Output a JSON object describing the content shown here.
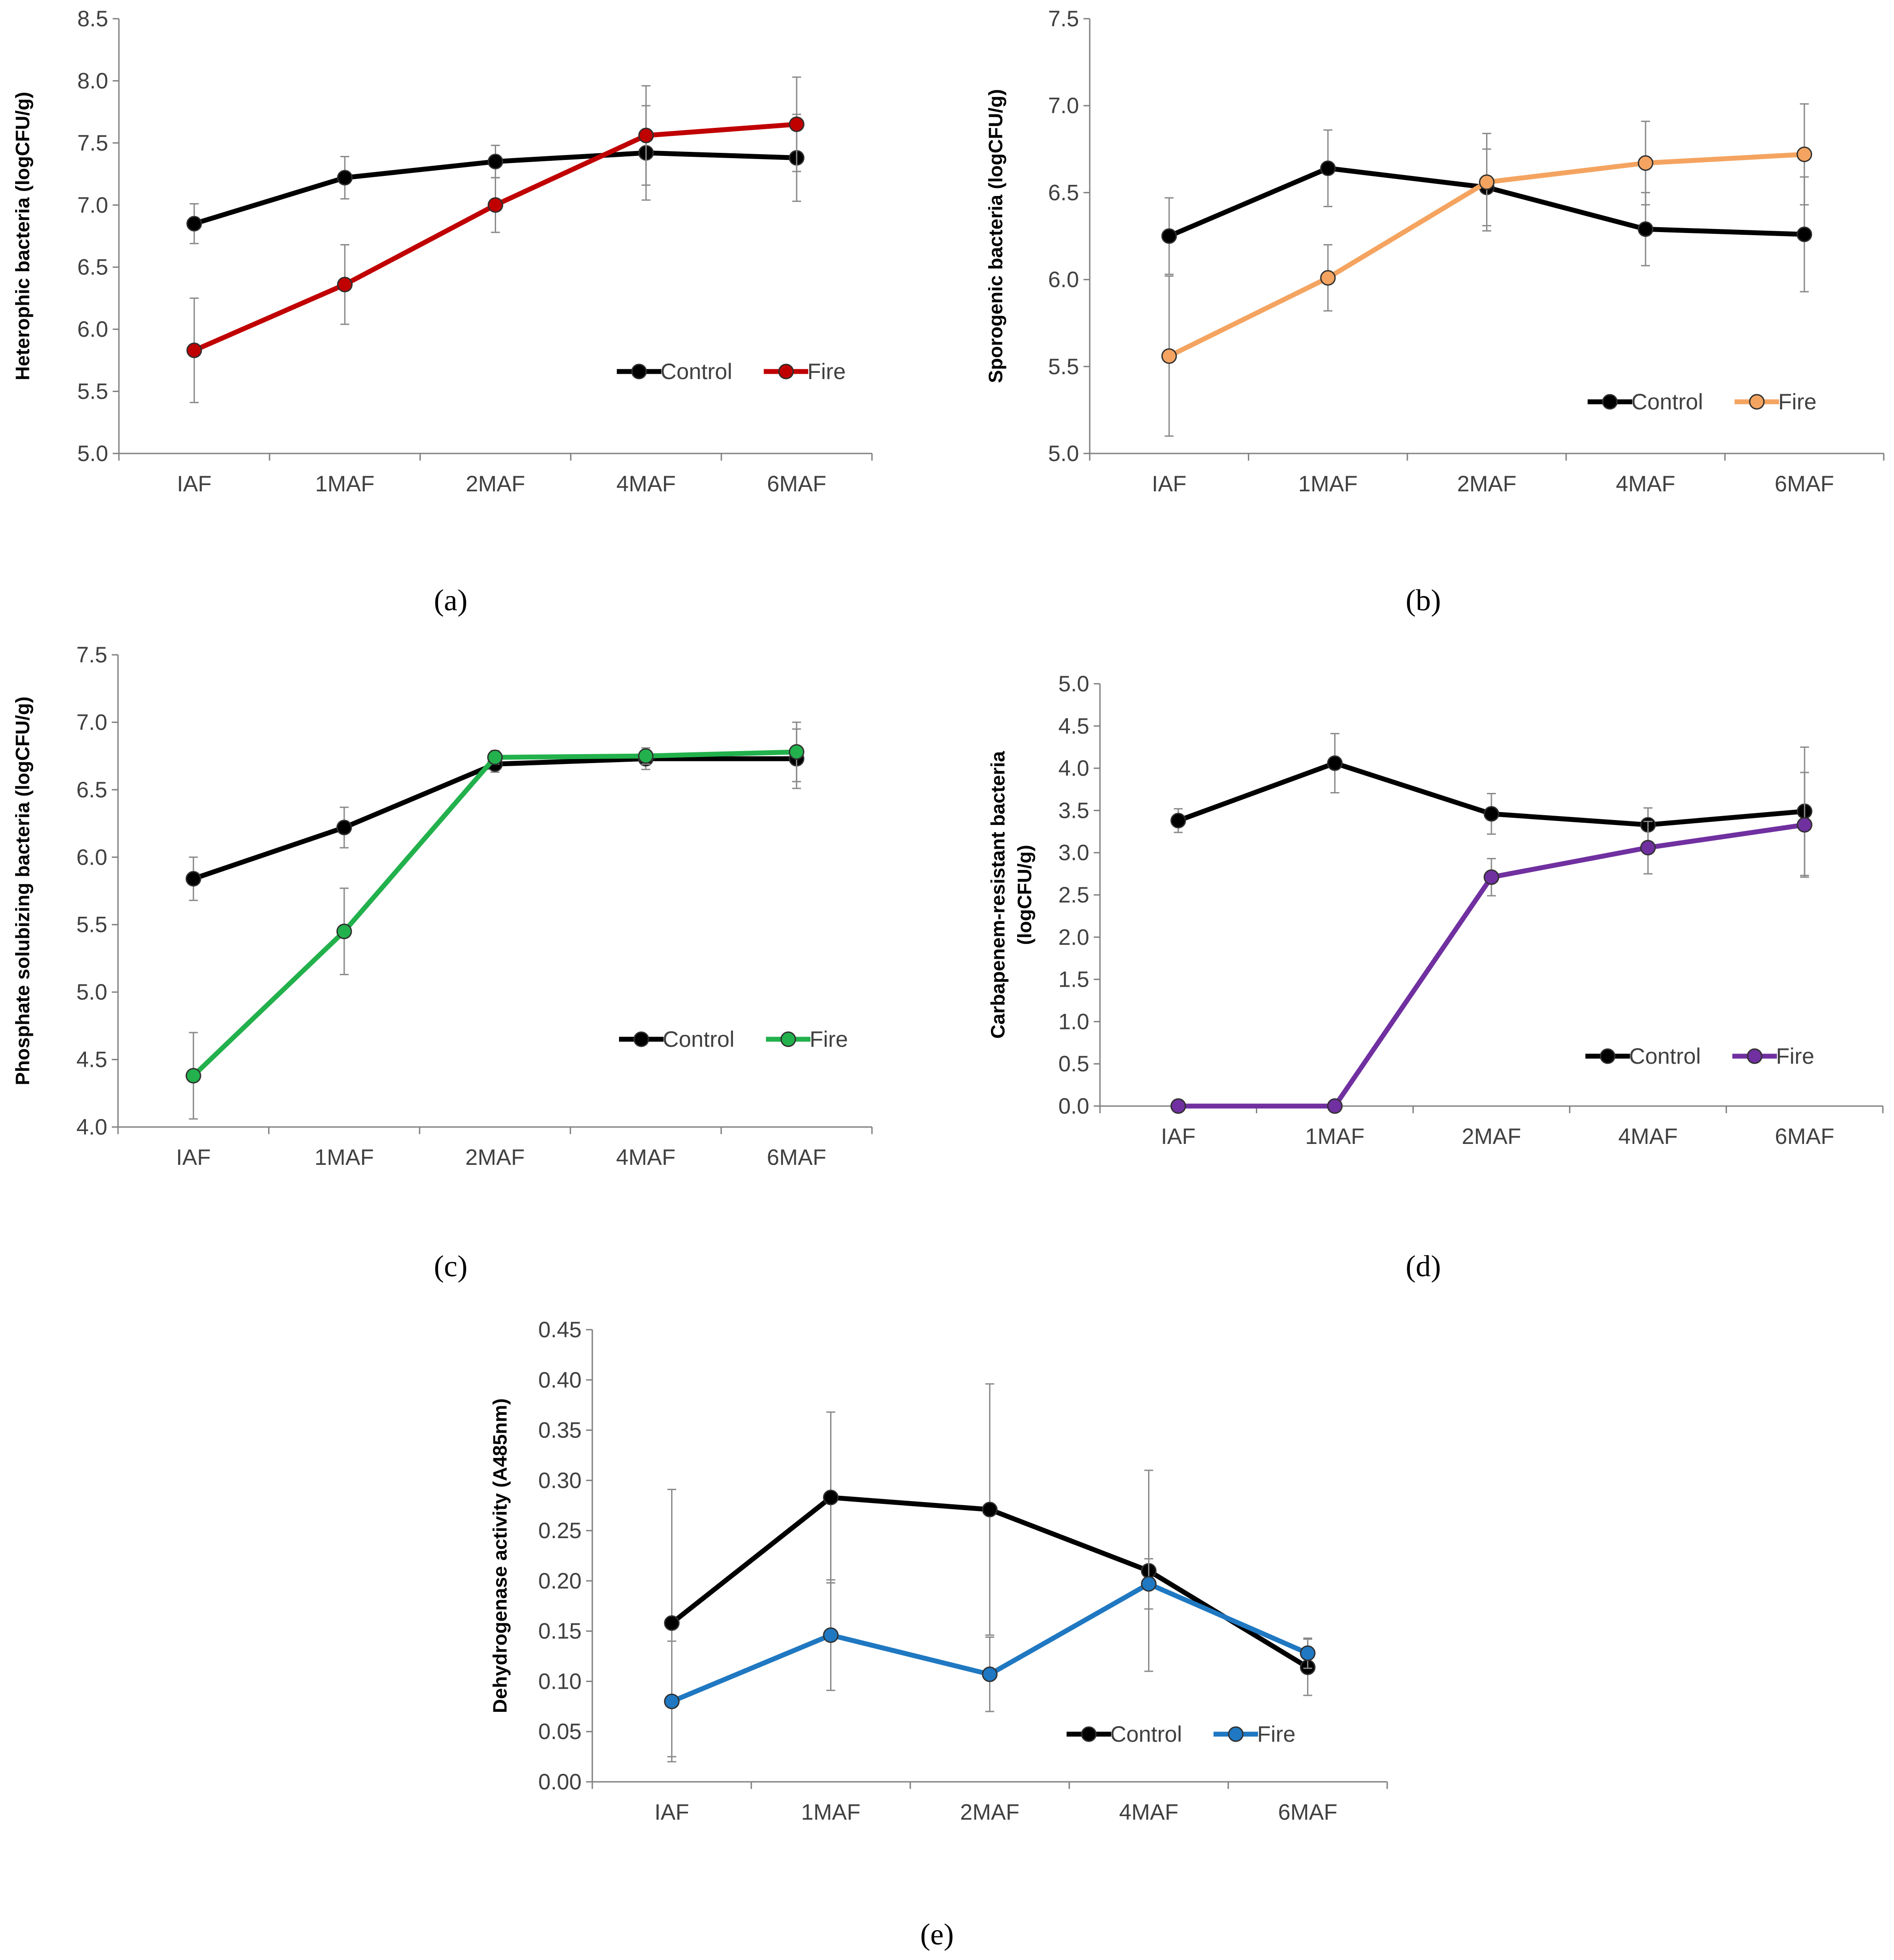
{
  "chart_data": [
    {
      "panel": "a",
      "type": "line",
      "ylabel": "Heterophic bacteria (logCFU/g)",
      "categories": [
        "IAF",
        "1MAF",
        "2MAF",
        "4MAF",
        "6MAF"
      ],
      "ylim": [
        5.0,
        8.5
      ],
      "yticks": [
        "5.0",
        "5.5",
        "6.0",
        "6.5",
        "7.0",
        "7.5",
        "8.0",
        "8.5"
      ],
      "series": [
        {
          "name": "Control",
          "color": "#000000",
          "values": [
            6.85,
            7.22,
            7.35,
            7.42,
            7.38
          ],
          "err": [
            0.16,
            0.17,
            0.13,
            0.38,
            0.35
          ]
        },
        {
          "name": "Fire",
          "color": "#c00000",
          "values": [
            5.83,
            6.36,
            7.0,
            7.56,
            7.65
          ],
          "err": [
            0.42,
            0.32,
            0.22,
            0.4,
            0.38
          ]
        }
      ],
      "legend": "bottom-right"
    },
    {
      "panel": "b",
      "type": "line",
      "ylabel": "Sporogenic bacteria (logCFU/g)",
      "categories": [
        "IAF",
        "1MAF",
        "2MAF",
        "4MAF",
        "6MAF"
      ],
      "ylim": [
        5.0,
        7.5
      ],
      "yticks": [
        "5.0",
        "5.5",
        "6.0",
        "6.5",
        "7.0",
        "7.5"
      ],
      "series": [
        {
          "name": "Control",
          "color": "#000000",
          "values": [
            6.25,
            6.64,
            6.53,
            6.29,
            6.26
          ],
          "err": [
            0.22,
            0.22,
            0.22,
            0.21,
            0.33
          ]
        },
        {
          "name": "Fire",
          "color": "#f4a460",
          "values": [
            5.56,
            6.01,
            6.56,
            6.67,
            6.72
          ],
          "err": [
            0.46,
            0.19,
            0.28,
            0.24,
            0.29
          ]
        }
      ],
      "legend": "bottom-right"
    },
    {
      "panel": "c",
      "type": "line",
      "ylabel": "Phosphate solubizing bacteria (logCFU/g)",
      "categories": [
        "IAF",
        "1MAF",
        "2MAF",
        "4MAF",
        "6MAF"
      ],
      "ylim": [
        4.0,
        7.5
      ],
      "yticks": [
        "4.0",
        "4.5",
        "5.0",
        "5.5",
        "6.0",
        "6.5",
        "7.0",
        "7.5"
      ],
      "series": [
        {
          "name": "Control",
          "color": "#000000",
          "values": [
            5.84,
            6.22,
            6.69,
            6.73,
            6.73
          ],
          "err": [
            0.16,
            0.15,
            0.06,
            0.08,
            0.22
          ]
        },
        {
          "name": "Fire",
          "color": "#22b14c",
          "values": [
            4.38,
            5.45,
            6.74,
            6.75,
            6.78
          ],
          "err": [
            0.32,
            0.32,
            0.05,
            0.06,
            0.22
          ]
        }
      ],
      "legend": "bottom-right"
    },
    {
      "panel": "d",
      "type": "line",
      "ylabel": "Carbapenem-resistant bacteria",
      "ylabel2": "(logCFU/g)",
      "categories": [
        "IAF",
        "1MAF",
        "2MAF",
        "4MAF",
        "6MAF"
      ],
      "ylim": [
        0.0,
        5.0
      ],
      "yticks": [
        "0.0",
        "0.5",
        "1.0",
        "1.5",
        "2.0",
        "2.5",
        "3.0",
        "3.5",
        "4.0",
        "4.5",
        "5.0"
      ],
      "series": [
        {
          "name": "Control",
          "color": "#000000",
          "values": [
            3.38,
            4.06,
            3.46,
            3.33,
            3.49
          ],
          "err": [
            0.14,
            0.35,
            0.24,
            0.2,
            0.76
          ]
        },
        {
          "name": "Fire",
          "color": "#7030a0",
          "values": [
            0.0,
            0.0,
            2.71,
            3.06,
            3.33
          ],
          "err": [
            0,
            0,
            0.22,
            0.31,
            0.62
          ]
        }
      ],
      "legend": "bottom-right"
    },
    {
      "panel": "e",
      "type": "line",
      "ylabel": "Dehydrogenase activity (A485nm)",
      "categories": [
        "IAF",
        "1MAF",
        "2MAF",
        "4MAF",
        "6MAF"
      ],
      "ylim": [
        0.0,
        0.45
      ],
      "yticks": [
        "0.00",
        "0.05",
        "0.10",
        "0.15",
        "0.20",
        "0.25",
        "0.30",
        "0.35",
        "0.40",
        "0.45"
      ],
      "series": [
        {
          "name": "Control",
          "color": "#000000",
          "values": [
            0.158,
            0.283,
            0.271,
            0.21,
            0.114
          ],
          "err": [
            0.133,
            0.085,
            0.125,
            0.1,
            0.028
          ]
        },
        {
          "name": "Fire",
          "color": "#1f78c1",
          "values": [
            0.08,
            0.146,
            0.107,
            0.197,
            0.128
          ],
          "err": [
            0.06,
            0.055,
            0.037,
            0.025,
            0.015
          ]
        }
      ],
      "legend": "bottom-right"
    }
  ],
  "captions": {
    "a": "(a)",
    "b": "(b)",
    "c": "(c)",
    "d": "(d)",
    "e": "(e)"
  }
}
